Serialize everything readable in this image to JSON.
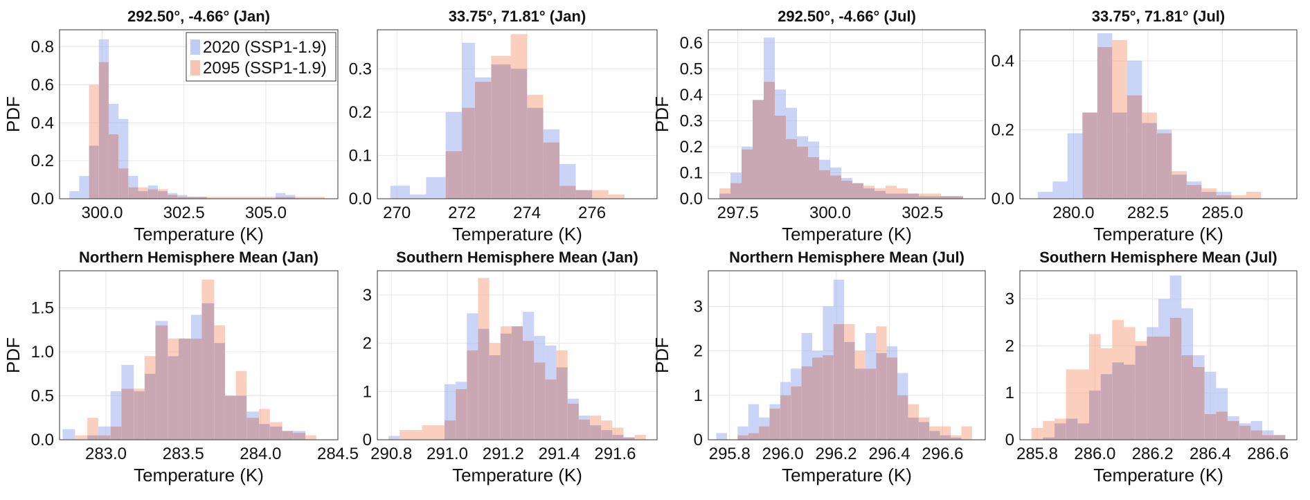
{
  "figure": {
    "colors": {
      "series_2020": "#9fb1ee",
      "series_2095": "#f5a886",
      "overlap": "#c9a8b4",
      "grid": "#e6e6e6",
      "axis": "#555555"
    },
    "legend": {
      "placement": "top-right",
      "panel": 0
    }
  },
  "chart_data": [
    {
      "type": "histogram",
      "title": "292.50°, -4.66° (Jan)",
      "xlabel": "Temperature (K)",
      "ylabel": "PDF",
      "xlim": [
        298.7,
        307.2
      ],
      "ylim": [
        0,
        0.89
      ],
      "xticks": [
        300.0,
        302.5,
        305.0
      ],
      "xtick_labels": [
        "300.0",
        "302.5",
        "305.0"
      ],
      "yticks": [
        0,
        0.2,
        0.4,
        0.6,
        0.8
      ],
      "ytick_labels": [
        "0.0",
        "0.2",
        "0.4",
        "0.6",
        "0.8"
      ],
      "bin_edges": [
        299.0,
        299.3,
        299.6,
        299.9,
        300.2,
        300.5,
        300.8,
        301.1,
        301.4,
        301.7,
        302.0,
        302.3,
        302.6,
        302.9,
        303.2,
        303.5,
        303.8,
        304.1,
        304.4,
        304.7,
        305.0,
        305.3,
        305.6,
        305.9,
        306.2,
        306.5,
        306.8
      ],
      "series": [
        {
          "name": "2020 (SSP1-1.9)",
          "values": [
            0.04,
            0.12,
            0.28,
            0.84,
            0.5,
            0.42,
            0.12,
            0.04,
            0.07,
            0.04,
            0.03,
            0.02,
            0.01,
            0.01,
            0.0,
            0.0,
            0.0,
            0.0,
            0.0,
            0.0,
            0.0,
            0.03,
            0.02,
            0.0,
            0.0,
            0.0
          ]
        },
        {
          "name": "2095 (SSP1-1.9)",
          "values": [
            0.0,
            0.0,
            0.6,
            0.72,
            0.34,
            0.16,
            0.06,
            0.06,
            0.05,
            0.05,
            0.02,
            0.01,
            0.01,
            0.01,
            0.01,
            0.01,
            0.01,
            0.01,
            0.01,
            0.01,
            0.01,
            0.01,
            0.01,
            0.01,
            0.01,
            0.01
          ]
        }
      ]
    },
    {
      "type": "histogram",
      "title": "33.75°, 71.81° (Jan)",
      "xlabel": "Temperature (K)",
      "ylabel": "",
      "xlim": [
        269.4,
        278.0
      ],
      "ylim": [
        0,
        0.39
      ],
      "xticks": [
        270,
        272,
        274,
        276
      ],
      "xtick_labels": [
        "270",
        "272",
        "274",
        "276"
      ],
      "yticks": [
        0,
        0.1,
        0.2,
        0.3
      ],
      "ytick_labels": [
        "0.0",
        "0.1",
        "0.2",
        "0.3"
      ],
      "bin_edges": [
        269.8,
        270.4,
        270.9,
        271.5,
        272.0,
        272.4,
        272.9,
        273.5,
        274.0,
        274.5,
        275.0,
        275.5,
        276.0,
        276.5,
        277.0
      ],
      "series": [
        {
          "name": "2020 (SSP1-1.9)",
          "values": [
            0.03,
            0.01,
            0.05,
            0.2,
            0.36,
            0.28,
            0.31,
            0.3,
            0.21,
            0.16,
            0.08,
            0.02,
            0.0,
            0.0
          ]
        },
        {
          "name": "2095 (SSP1-1.9)",
          "values": [
            0.0,
            0.0,
            0.0,
            0.11,
            0.21,
            0.27,
            0.33,
            0.38,
            0.24,
            0.13,
            0.03,
            0.02,
            0.02,
            0.01
          ]
        }
      ]
    },
    {
      "type": "histogram",
      "title": "292.50°, -4.66° (Jul)",
      "xlabel": "Temperature (K)",
      "ylabel": "PDF",
      "xlim": [
        296.7,
        304.2
      ],
      "ylim": [
        0,
        0.65
      ],
      "xticks": [
        297.5,
        300.0,
        302.5
      ],
      "xtick_labels": [
        "297.5",
        "300.0",
        "302.5"
      ],
      "yticks": [
        0,
        0.1,
        0.2,
        0.3,
        0.4,
        0.5,
        0.6
      ],
      "ytick_labels": [
        "0.0",
        "0.1",
        "0.2",
        "0.3",
        "0.4",
        "0.5",
        "0.6"
      ],
      "bin_edges": [
        297.0,
        297.3,
        297.6,
        297.9,
        298.2,
        298.5,
        298.8,
        299.1,
        299.4,
        299.7,
        300.0,
        300.3,
        300.6,
        300.9,
        301.2,
        301.5,
        301.8,
        302.1,
        302.4,
        302.7,
        303.0,
        303.3,
        303.6,
        303.9
      ],
      "series": [
        {
          "name": "2020 (SSP1-1.9)",
          "values": [
            0.02,
            0.1,
            0.2,
            0.38,
            0.62,
            0.42,
            0.35,
            0.24,
            0.22,
            0.15,
            0.12,
            0.08,
            0.06,
            0.04,
            0.03,
            0.02,
            0.02,
            0.02,
            0.01,
            0.01,
            0.01,
            0.01,
            0.0
          ]
        },
        {
          "name": "2095 (SSP1-1.9)",
          "values": [
            0.04,
            0.06,
            0.19,
            0.38,
            0.45,
            0.32,
            0.23,
            0.2,
            0.16,
            0.11,
            0.09,
            0.07,
            0.06,
            0.05,
            0.04,
            0.05,
            0.04,
            0.02,
            0.02,
            0.02,
            0.01,
            0.01,
            0.0
          ]
        }
      ]
    },
    {
      "type": "histogram",
      "title": "33.75°, 71.81° (Jul)",
      "xlabel": "Temperature (K)",
      "ylabel": "",
      "xlim": [
        278.2,
        287.5
      ],
      "ylim": [
        0,
        0.49
      ],
      "xticks": [
        280.0,
        282.5,
        285.0
      ],
      "xtick_labels": [
        "280.0",
        "282.5",
        "285.0"
      ],
      "yticks": [
        0,
        0.2,
        0.4
      ],
      "ytick_labels": [
        "0.0",
        "0.2",
        "0.4"
      ],
      "bin_edges": [
        278.8,
        279.3,
        279.8,
        280.3,
        280.8,
        281.3,
        281.8,
        282.3,
        282.8,
        283.3,
        283.8,
        284.3,
        284.8,
        285.3,
        285.8,
        286.3
      ],
      "series": [
        {
          "name": "2020 (SSP1-1.9)",
          "values": [
            0.02,
            0.05,
            0.19,
            0.25,
            0.48,
            0.25,
            0.4,
            0.22,
            0.2,
            0.07,
            0.05,
            0.02,
            0.02,
            0.0,
            0.0
          ]
        },
        {
          "name": "2095 (SSP1-1.9)",
          "values": [
            0.0,
            0.0,
            0.0,
            0.25,
            0.44,
            0.46,
            0.3,
            0.25,
            0.19,
            0.08,
            0.04,
            0.03,
            0.01,
            0.01,
            0.02
          ]
        }
      ]
    },
    {
      "type": "histogram",
      "title": "Northern Hemisphere Mean (Jan)",
      "xlabel": "Temperature (K)",
      "ylabel": "PDF",
      "xlim": [
        282.7,
        284.5
      ],
      "ylim": [
        0,
        1.92
      ],
      "xticks": [
        283.0,
        283.5,
        284.0,
        284.5
      ],
      "xtick_labels": [
        "283.0",
        "283.5",
        "284.0",
        "284.5"
      ],
      "yticks": [
        0,
        0.5,
        1.0,
        1.5
      ],
      "ytick_labels": [
        "0.0",
        "0.5",
        "1.0",
        "1.5"
      ],
      "bin_edges": [
        282.72,
        282.8,
        282.88,
        282.95,
        283.03,
        283.1,
        283.18,
        283.25,
        283.32,
        283.4,
        283.47,
        283.55,
        283.62,
        283.7,
        283.77,
        283.84,
        283.91,
        283.99,
        284.06,
        284.14,
        284.21,
        284.29,
        284.36
      ],
      "series": [
        {
          "name": "2020 (SSP1-1.9)",
          "values": [
            0.12,
            0.0,
            0.05,
            0.15,
            0.55,
            0.85,
            0.55,
            0.75,
            1.35,
            0.95,
            1.15,
            1.42,
            1.55,
            1.1,
            0.5,
            0.5,
            0.32,
            0.18,
            0.15,
            0.1,
            0.1,
            0.0
          ]
        },
        {
          "name": "2095 (SSP1-1.9)",
          "values": [
            0.0,
            0.05,
            0.25,
            0.05,
            0.15,
            0.58,
            0.58,
            0.95,
            1.3,
            1.15,
            1.15,
            1.15,
            1.82,
            1.3,
            0.5,
            0.78,
            0.25,
            0.35,
            0.2,
            0.1,
            0.08,
            0.05
          ]
        }
      ]
    },
    {
      "type": "histogram",
      "title": "Southern Hemisphere Mean (Jan)",
      "xlabel": "Temperature (K)",
      "ylabel": "",
      "xlim": [
        290.75,
        291.75
      ],
      "ylim": [
        0,
        3.5
      ],
      "xticks": [
        290.8,
        291.0,
        291.2,
        291.4,
        291.6
      ],
      "xtick_labels": [
        "290.8",
        "291.0",
        "291.2",
        "291.4",
        "291.6"
      ],
      "yticks": [
        0,
        1,
        2,
        3
      ],
      "ytick_labels": [
        "0",
        "1",
        "2",
        "3"
      ],
      "bin_edges": [
        290.79,
        290.83,
        290.87,
        290.91,
        290.95,
        290.99,
        291.03,
        291.07,
        291.11,
        291.15,
        291.19,
        291.23,
        291.27,
        291.31,
        291.35,
        291.39,
        291.43,
        291.47,
        291.51,
        291.55,
        291.59,
        291.63,
        291.67,
        291.71
      ],
      "series": [
        {
          "name": "2020 (SSP1-1.9)",
          "values": [
            0.08,
            0.0,
            0.0,
            0.0,
            0.0,
            1.15,
            1.2,
            2.62,
            2.3,
            1.75,
            2.2,
            2.35,
            2.65,
            2.15,
            1.95,
            1.5,
            0.85,
            0.5,
            0.3,
            0.2,
            0.1,
            0.05,
            0.0
          ]
        },
        {
          "name": "2095 (SSP1-1.9)",
          "values": [
            0.0,
            0.2,
            0.2,
            0.3,
            0.3,
            0.4,
            1.05,
            1.85,
            3.35,
            2.0,
            2.35,
            2.35,
            2.05,
            1.6,
            1.25,
            1.85,
            0.75,
            0.42,
            0.5,
            0.4,
            0.25,
            0.05,
            0.1
          ]
        }
      ]
    },
    {
      "type": "histogram",
      "title": "Northern Hemisphere Mean (Jul)",
      "xlabel": "Temperature (K)",
      "ylabel": "PDF",
      "xlim": [
        295.72,
        296.76
      ],
      "ylim": [
        0,
        3.8
      ],
      "xticks": [
        295.8,
        296.0,
        296.2,
        296.4,
        296.6
      ],
      "xtick_labels": [
        "295.8",
        "296.0",
        "296.2",
        "296.4",
        "296.6"
      ],
      "yticks": [
        0,
        1,
        2,
        3
      ],
      "ytick_labels": [
        "0",
        "1",
        "2",
        "3"
      ],
      "bin_edges": [
        295.75,
        295.79,
        295.83,
        295.87,
        295.91,
        295.95,
        295.99,
        296.03,
        296.07,
        296.11,
        296.15,
        296.19,
        296.23,
        296.27,
        296.31,
        296.35,
        296.39,
        296.43,
        296.47,
        296.51,
        296.55,
        296.59,
        296.63,
        296.67,
        296.71
      ],
      "series": [
        {
          "name": "2020 (SSP1-1.9)",
          "values": [
            0.15,
            0.0,
            0.3,
            0.8,
            0.5,
            0.8,
            1.3,
            1.6,
            2.4,
            2.0,
            3.0,
            3.6,
            2.2,
            1.6,
            2.4,
            1.95,
            2.1,
            1.5,
            0.5,
            0.4,
            0.2,
            0.1,
            0.05,
            0.0
          ]
        },
        {
          "name": "2095 (SSP1-1.9)",
          "values": [
            0.0,
            0.0,
            0.1,
            0.15,
            0.3,
            0.7,
            1.0,
            1.2,
            1.65,
            1.85,
            1.9,
            2.6,
            2.6,
            2.0,
            1.6,
            2.55,
            1.85,
            1.0,
            0.8,
            0.5,
            0.3,
            0.3,
            0.1,
            0.3
          ]
        }
      ]
    },
    {
      "type": "histogram",
      "title": "Southern Hemisphere Mean (Jul)",
      "xlabel": "Temperature (K)",
      "ylabel": "",
      "xlim": [
        285.74,
        286.7
      ],
      "ylim": [
        0,
        3.6
      ],
      "xticks": [
        285.8,
        286.0,
        286.2,
        286.4,
        286.6
      ],
      "xtick_labels": [
        "285.8",
        "286.0",
        "286.2",
        "286.4",
        "286.6"
      ],
      "yticks": [
        0,
        1,
        2,
        3
      ],
      "ytick_labels": [
        "0",
        "1",
        "2",
        "3"
      ],
      "bin_edges": [
        285.78,
        285.82,
        285.86,
        285.9,
        285.94,
        285.98,
        286.02,
        286.06,
        286.1,
        286.14,
        286.18,
        286.22,
        286.26,
        286.3,
        286.34,
        286.38,
        286.42,
        286.46,
        286.5,
        286.54,
        286.58,
        286.62,
        286.66
      ],
      "series": [
        {
          "name": "2020 (SSP1-1.9)",
          "values": [
            0.0,
            0.05,
            0.35,
            0.45,
            0.35,
            1.05,
            1.4,
            1.65,
            1.6,
            2.0,
            2.4,
            3.0,
            3.5,
            2.8,
            1.8,
            1.45,
            1.1,
            0.5,
            0.35,
            0.4,
            0.2,
            0.1
          ]
        },
        {
          "name": "2095 (SSP1-1.9)",
          "values": [
            0.25,
            0.4,
            0.45,
            1.5,
            1.5,
            2.25,
            1.95,
            2.55,
            2.4,
            2.1,
            2.2,
            2.2,
            2.6,
            1.8,
            1.55,
            0.55,
            0.6,
            0.4,
            0.3,
            0.2,
            0.1,
            0.1
          ]
        }
      ]
    }
  ]
}
